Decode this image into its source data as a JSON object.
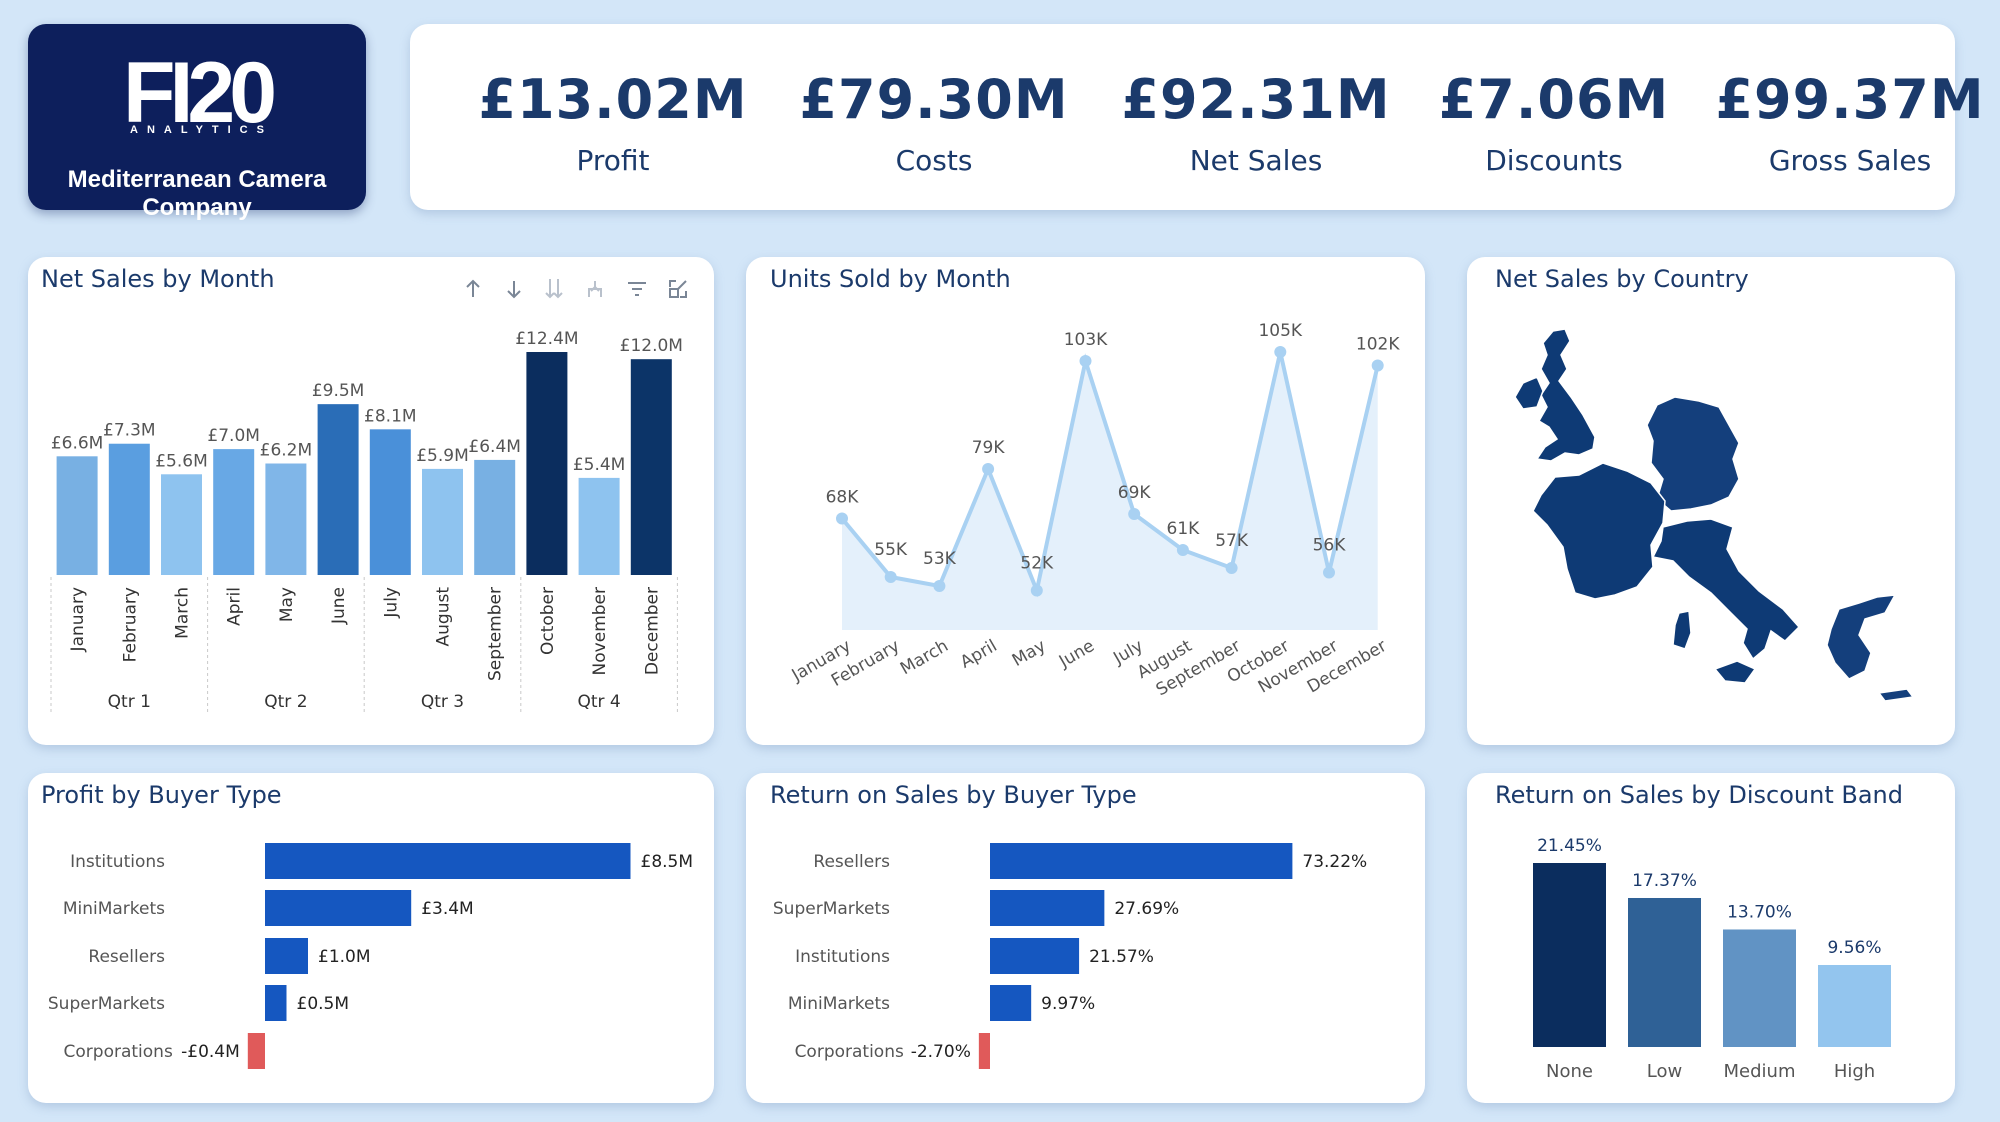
{
  "logo": {
    "brand": "FI20",
    "tagline": "ANALYTICS",
    "company": "Mediterranean Camera Company"
  },
  "kpis": [
    {
      "value": "£13.02M",
      "label": "Profit"
    },
    {
      "value": "£79.30M",
      "label": "Costs"
    },
    {
      "value": "£92.31M",
      "label": "Net Sales"
    },
    {
      "value": "£7.06M",
      "label": "Discounts"
    },
    {
      "value": "£99.37M",
      "label": "Gross Sales"
    }
  ],
  "titles": {
    "net_sales_month": "Net Sales by Month",
    "units_month": "Units Sold by Month",
    "net_sales_country": "Net Sales by Country",
    "profit_buyer": "Profit by Buyer Type",
    "ros_buyer": "Return on Sales by Buyer Type",
    "ros_discount": "Return on Sales by Discount Band"
  },
  "toolbar_icons": [
    "sort-up-icon",
    "sort-down-icon",
    "expand-all-down-icon",
    "drill-up-icon",
    "filter-icon",
    "focus-mode-icon"
  ],
  "colors": {
    "navy": "#0d1f5c",
    "kpi_text": "#1b3a6b",
    "bar_blue": "#1557c0",
    "negative": "#e05a5a",
    "line": "#a9d1f2",
    "area": "#e4f0fb",
    "map": "#0e3a75"
  },
  "chart_data": [
    {
      "id": "net_sales_by_month",
      "type": "bar",
      "title": "Net Sales by Month",
      "categories": [
        "January",
        "February",
        "March",
        "April",
        "May",
        "June",
        "July",
        "August",
        "September",
        "October",
        "November",
        "December"
      ],
      "groups": [
        {
          "name": "Qtr 1",
          "months": [
            "January",
            "February",
            "March"
          ]
        },
        {
          "name": "Qtr 2",
          "months": [
            "April",
            "May",
            "June"
          ]
        },
        {
          "name": "Qtr 3",
          "months": [
            "July",
            "August",
            "September"
          ]
        },
        {
          "name": "Qtr 4",
          "months": [
            "October",
            "November",
            "December"
          ]
        }
      ],
      "values": [
        6.6,
        7.3,
        5.6,
        7.0,
        6.2,
        9.5,
        8.1,
        5.9,
        6.4,
        12.4,
        5.4,
        12.0
      ],
      "labels": [
        "£6.6M",
        "£7.3M",
        "£5.6M",
        "£7.0M",
        "£6.2M",
        "£9.5M",
        "£8.1M",
        "£5.9M",
        "£6.4M",
        "£12.4M",
        "£5.4M",
        "£12.0M"
      ],
      "colors": [
        "#78b0e3",
        "#5a9ee0",
        "#8ec3ef",
        "#68a8e5",
        "#80b6e8",
        "#2a6db7",
        "#4a90d9",
        "#8ec3ef",
        "#78b0e3",
        "#0b2d5e",
        "#8ec3ef",
        "#0c3468"
      ],
      "ylim": [
        0,
        12.4
      ]
    },
    {
      "id": "units_sold_by_month",
      "type": "area",
      "title": "Units Sold by Month",
      "categories": [
        "January",
        "February",
        "March",
        "April",
        "May",
        "June",
        "July",
        "August",
        "September",
        "October",
        "November",
        "December"
      ],
      "values": [
        68,
        55,
        53,
        79,
        52,
        103,
        69,
        61,
        57,
        105,
        56,
        102
      ],
      "labels": [
        "68K",
        "55K",
        "53K",
        "79K",
        "52K",
        "103K",
        "69K",
        "61K",
        "57K",
        "105K",
        "56K",
        "102K"
      ],
      "ylim": [
        40,
        110
      ]
    },
    {
      "id": "profit_by_buyer_type",
      "type": "bar",
      "orientation": "horizontal",
      "title": "Profit by Buyer Type",
      "categories": [
        "Institutions",
        "MiniMarkets",
        "Resellers",
        "SuperMarkets",
        "Corporations"
      ],
      "values": [
        8.5,
        3.4,
        1.0,
        0.5,
        -0.4
      ],
      "labels": [
        "£8.5M",
        "£3.4M",
        "£1.0M",
        "£0.5M",
        "-£0.4M"
      ]
    },
    {
      "id": "ros_by_buyer_type",
      "type": "bar",
      "orientation": "horizontal",
      "title": "Return on Sales by Buyer Type",
      "categories": [
        "Resellers",
        "SuperMarkets",
        "Institutions",
        "MiniMarkets",
        "Corporations"
      ],
      "values": [
        73.22,
        27.69,
        21.57,
        9.97,
        -2.7
      ],
      "labels": [
        "73.22%",
        "27.69%",
        "21.57%",
        "9.97%",
        "-2.70%"
      ]
    },
    {
      "id": "ros_by_discount_band",
      "type": "bar",
      "title": "Return on Sales by Discount Band",
      "categories": [
        "None",
        "Low",
        "Medium",
        "High"
      ],
      "values": [
        21.45,
        17.37,
        13.7,
        9.56
      ],
      "labels": [
        "21.45%",
        "17.37%",
        "13.70%",
        "9.56%"
      ],
      "colors": [
        "#0b2d5e",
        "#2f6196",
        "#6193c4",
        "#93c5ee"
      ]
    },
    {
      "id": "net_sales_by_country",
      "type": "map",
      "title": "Net Sales by Country",
      "regions": [
        "United Kingdom",
        "Germany",
        "France",
        "Italy",
        "Greece"
      ]
    }
  ]
}
